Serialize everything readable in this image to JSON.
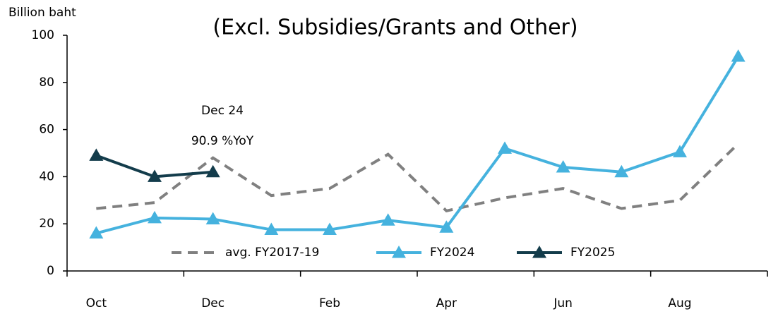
{
  "chart_data": {
    "type": "line",
    "title": "(Excl. Subsidies/Grants and Other)",
    "y_label": "Billion baht",
    "annotations": [
      "Dec 24",
      "90.9 %YoY"
    ],
    "categories": [
      "Oct",
      null,
      "Dec",
      null,
      "Feb",
      null,
      "Apr",
      null,
      "Jun",
      null,
      "Aug",
      null
    ],
    "series": [
      {
        "name": "avg. FY2017-19",
        "color": "#808080",
        "dashed": true,
        "marker": null,
        "values": [
          26.5,
          29,
          48,
          32,
          35,
          49.5,
          25.5,
          31,
          35,
          26.5,
          30,
          54
        ]
      },
      {
        "name": "FY2024",
        "color": "#45b2de",
        "dashed": false,
        "marker": "triangle",
        "values": [
          16,
          22.5,
          22,
          17.5,
          17.5,
          21.5,
          18.5,
          52,
          44,
          42,
          50.5,
          91
        ]
      },
      {
        "name": "FY2025",
        "color": "#133c4b",
        "dashed": false,
        "marker": "triangle",
        "values": [
          49,
          40,
          42,
          null,
          null,
          null,
          null,
          null,
          null,
          null,
          null,
          null
        ]
      }
    ],
    "ylim": [
      0,
      100
    ],
    "yticks": [
      0,
      20,
      40,
      60,
      80,
      100
    ],
    "grid": false,
    "legend": "bottom"
  }
}
